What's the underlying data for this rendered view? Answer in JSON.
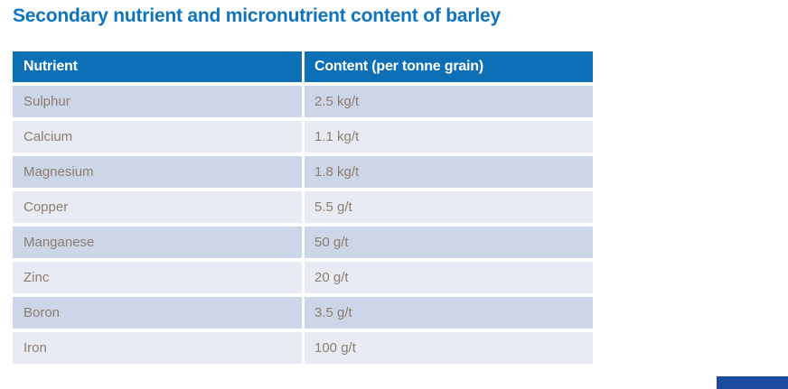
{
  "title": {
    "text": "Secondary nutrient and micronutrient content of barley",
    "color": "#0f74bd"
  },
  "table": {
    "header": {
      "nutrient": "Nutrient",
      "content": "Content (per tonne grain)"
    },
    "colors": {
      "header_bg": "#0d70b7",
      "header_text": "#ffffff",
      "row_dark_bg": "#ccd6e8",
      "row_light_bg": "#e8ebf4",
      "body_text": "#8c7d6e"
    },
    "rows": [
      {
        "nutrient": "Sulphur",
        "content": "2.5 kg/t"
      },
      {
        "nutrient": "Calcium",
        "content": "1.1 kg/t"
      },
      {
        "nutrient": "Magnesium",
        "content": "1.8 kg/t"
      },
      {
        "nutrient": "Copper",
        "content": "5.5 g/t"
      },
      {
        "nutrient": "Manganese",
        "content": "50 g/t"
      },
      {
        "nutrient": "Zinc",
        "content": "20 g/t"
      },
      {
        "nutrient": "Boron",
        "content": "3.5 g/t"
      },
      {
        "nutrient": "Iron",
        "content": "100 g/t"
      }
    ]
  },
  "footer": {
    "accent_bar_color": "#1c4a9e"
  }
}
